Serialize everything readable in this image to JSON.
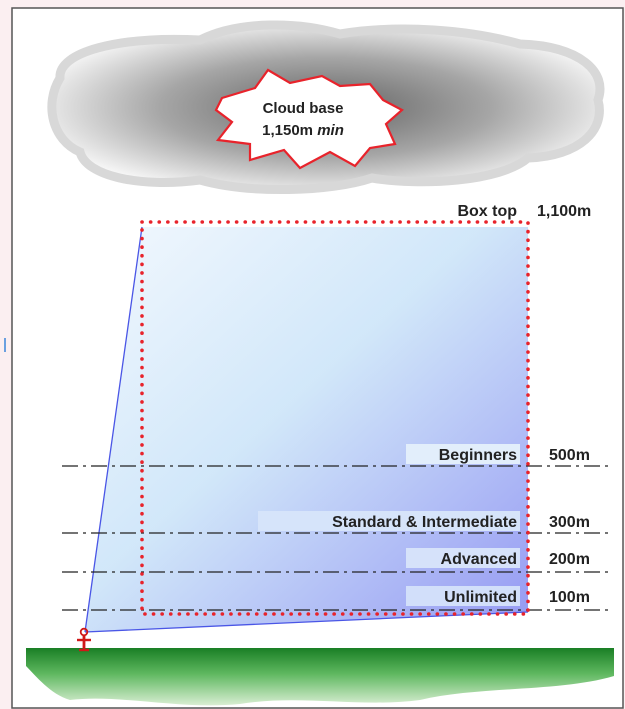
{
  "cloud": {
    "line1": "Cloud base",
    "line2_value": "1,150m",
    "line2_suffix": "min"
  },
  "box": {
    "label": "Box top",
    "altitude": "1,100m"
  },
  "levels": [
    {
      "label": "Beginners",
      "altitude": "500m"
    },
    {
      "label": "Standard & Intermediate",
      "altitude": "300m"
    },
    {
      "label": "Advanced",
      "altitude": "200m"
    },
    {
      "label": "Unlimited",
      "altitude": "100m"
    }
  ],
  "colors": {
    "box_border": "#e8232b",
    "fill_top": "#eef6fd",
    "fill_bottom": "#8e92f2",
    "ground": "#1f8a2a",
    "cloud_dark": "#6e6e6e",
    "cloud_light": "#f4f4f4",
    "winch": "#d01818"
  },
  "icons": [
    "cloud-shape",
    "starburst-callout",
    "winch-icon",
    "ground-shape"
  ]
}
